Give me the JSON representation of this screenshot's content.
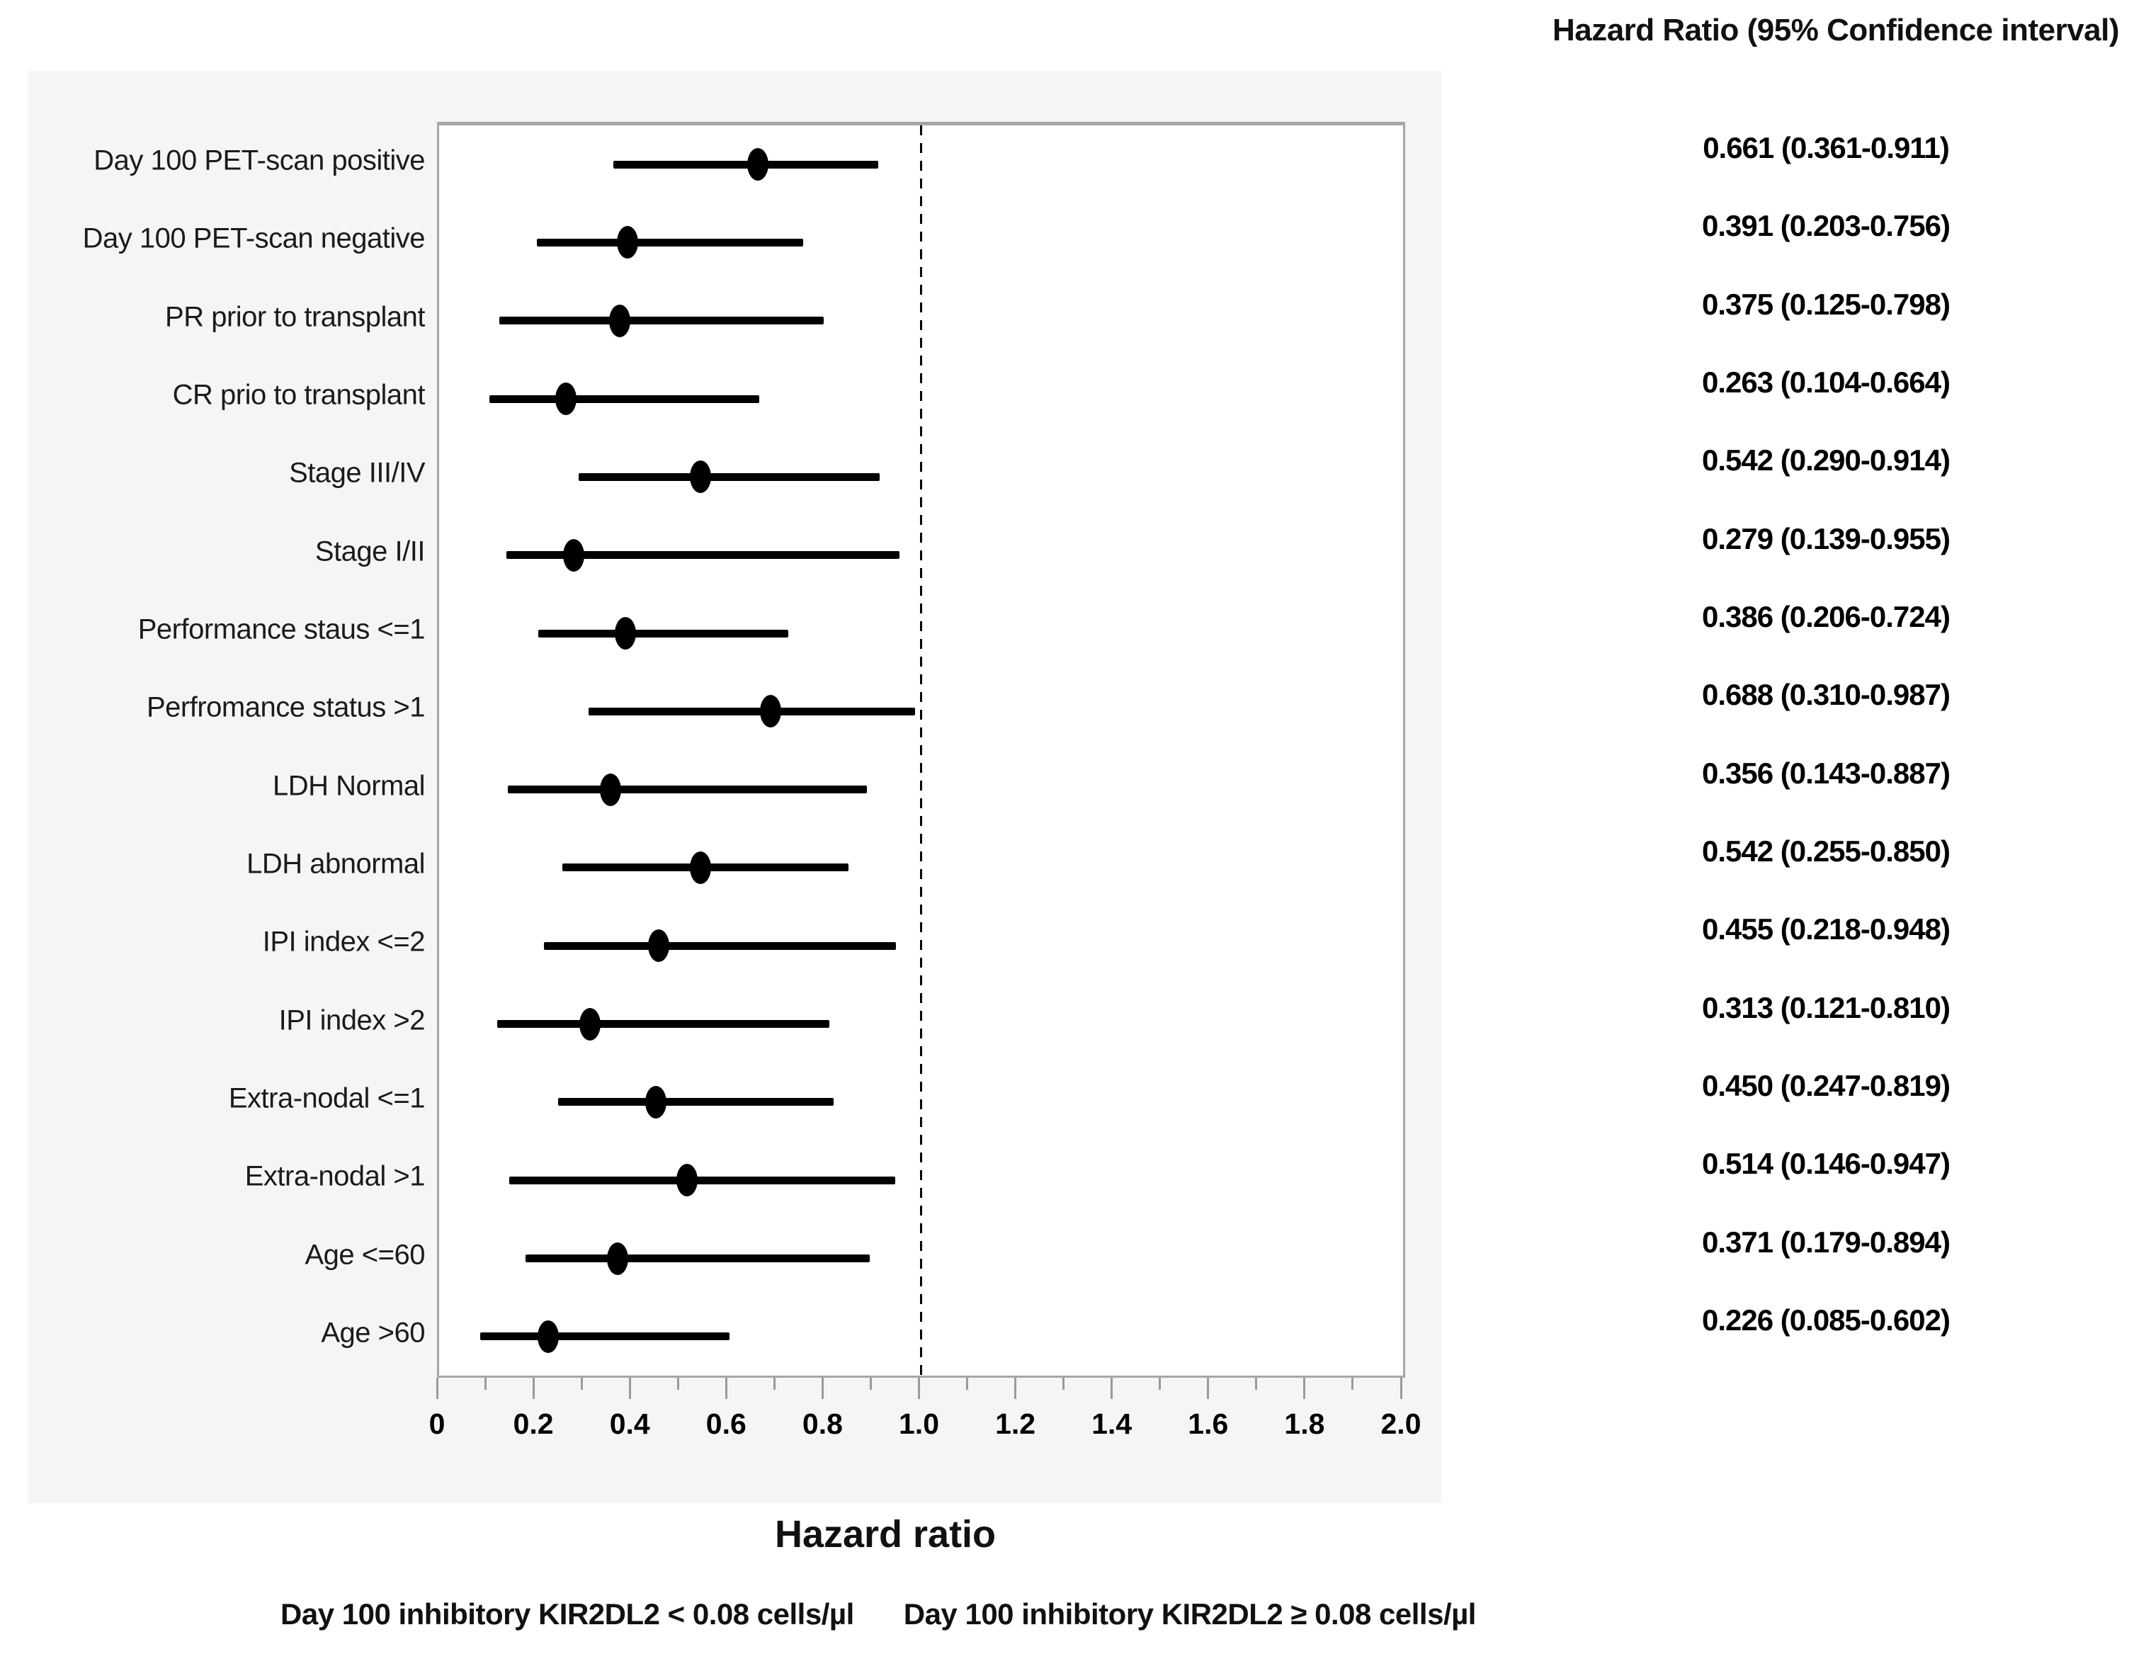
{
  "header": {
    "title": "Hazard Ratio (95%  Confidence interval)"
  },
  "footer": {
    "xaxis_title": "Hazard ratio",
    "legend_left": "Day 100  inhibitory  KIR2DL2 < 0.08 cells/µl",
    "legend_right": "Day 100 inhibitory  KIR2DL2 ≥ 0.08 cells/µl"
  },
  "colors": {
    "panel_bg": "#f5f5f6",
    "plot_bg": "#ffffff",
    "frame_border": "#a6a6a6",
    "tick": "#9a9a9a",
    "marker": "#000000",
    "text": "#111111"
  },
  "chart_data": {
    "type": "scatter",
    "subtype": "forest-plot",
    "title": "",
    "xlabel": "Hazard ratio",
    "ylabel": "",
    "xlim": [
      0,
      2.0
    ],
    "grid": false,
    "reference_line_x": 1.0,
    "x_major_ticks": [
      0,
      0.2,
      0.4,
      0.6,
      0.8,
      1.0,
      1.2,
      1.4,
      1.6,
      1.8,
      2.0
    ],
    "x_major_tick_labels": [
      "0",
      "0.2",
      "0.4",
      "0.6",
      "0.8",
      "1.0",
      "1.2",
      "1.4",
      "1.6",
      "1.8",
      "2.0"
    ],
    "x_minor_step": 0.1,
    "value_column_header": "Hazard Ratio (95%  Confidence interval)",
    "rows": [
      {
        "label": "Day 100 PET-scan positive",
        "hr": 0.661,
        "lo": 0.361,
        "hi": 0.911,
        "ci_text": "0.661 (0.361-0.911)"
      },
      {
        "label": "Day 100 PET-scan negative",
        "hr": 0.391,
        "lo": 0.203,
        "hi": 0.756,
        "ci_text": "0.391 (0.203-0.756)"
      },
      {
        "label": "PR prior to transplant",
        "hr": 0.375,
        "lo": 0.125,
        "hi": 0.798,
        "ci_text": "0.375 (0.125-0.798)"
      },
      {
        "label": "CR prio to transplant",
        "hr": 0.263,
        "lo": 0.104,
        "hi": 0.664,
        "ci_text": "0.263 (0.104-0.664)"
      },
      {
        "label": "Stage III/IV",
        "hr": 0.542,
        "lo": 0.29,
        "hi": 0.914,
        "ci_text": "0.542 (0.290-0.914)"
      },
      {
        "label": "Stage I/II",
        "hr": 0.279,
        "lo": 0.139,
        "hi": 0.955,
        "ci_text": "0.279 (0.139-0.955)"
      },
      {
        "label": "Performance staus <=1",
        "hr": 0.386,
        "lo": 0.206,
        "hi": 0.724,
        "ci_text": "0.386 (0.206-0.724)"
      },
      {
        "label": "Perfromance status >1",
        "hr": 0.688,
        "lo": 0.31,
        "hi": 0.987,
        "ci_text": "0.688 (0.310-0.987)"
      },
      {
        "label": "LDH Normal",
        "hr": 0.356,
        "lo": 0.143,
        "hi": 0.887,
        "ci_text": "0.356 (0.143-0.887)"
      },
      {
        "label": "LDH abnormal",
        "hr": 0.542,
        "lo": 0.255,
        "hi": 0.85,
        "ci_text": "0.542 (0.255-0.850)"
      },
      {
        "label": "IPI index <=2",
        "hr": 0.455,
        "lo": 0.218,
        "hi": 0.948,
        "ci_text": "0.455 (0.218-0.948)"
      },
      {
        "label": "IPI index >2",
        "hr": 0.313,
        "lo": 0.121,
        "hi": 0.81,
        "ci_text": "0.313 (0.121-0.810)"
      },
      {
        "label": "Extra-nodal <=1",
        "hr": 0.45,
        "lo": 0.247,
        "hi": 0.819,
        "ci_text": "0.450 (0.247-0.819)"
      },
      {
        "label": "Extra-nodal >1",
        "hr": 0.514,
        "lo": 0.146,
        "hi": 0.947,
        "ci_text": "0.514 (0.146-0.947)"
      },
      {
        "label": "Age <=60",
        "hr": 0.371,
        "lo": 0.179,
        "hi": 0.894,
        "ci_text": "0.371 (0.179-0.894)"
      },
      {
        "label": "Age >60",
        "hr": 0.226,
        "lo": 0.085,
        "hi": 0.602,
        "ci_text": "0.226 (0.085-0.602)"
      }
    ]
  }
}
